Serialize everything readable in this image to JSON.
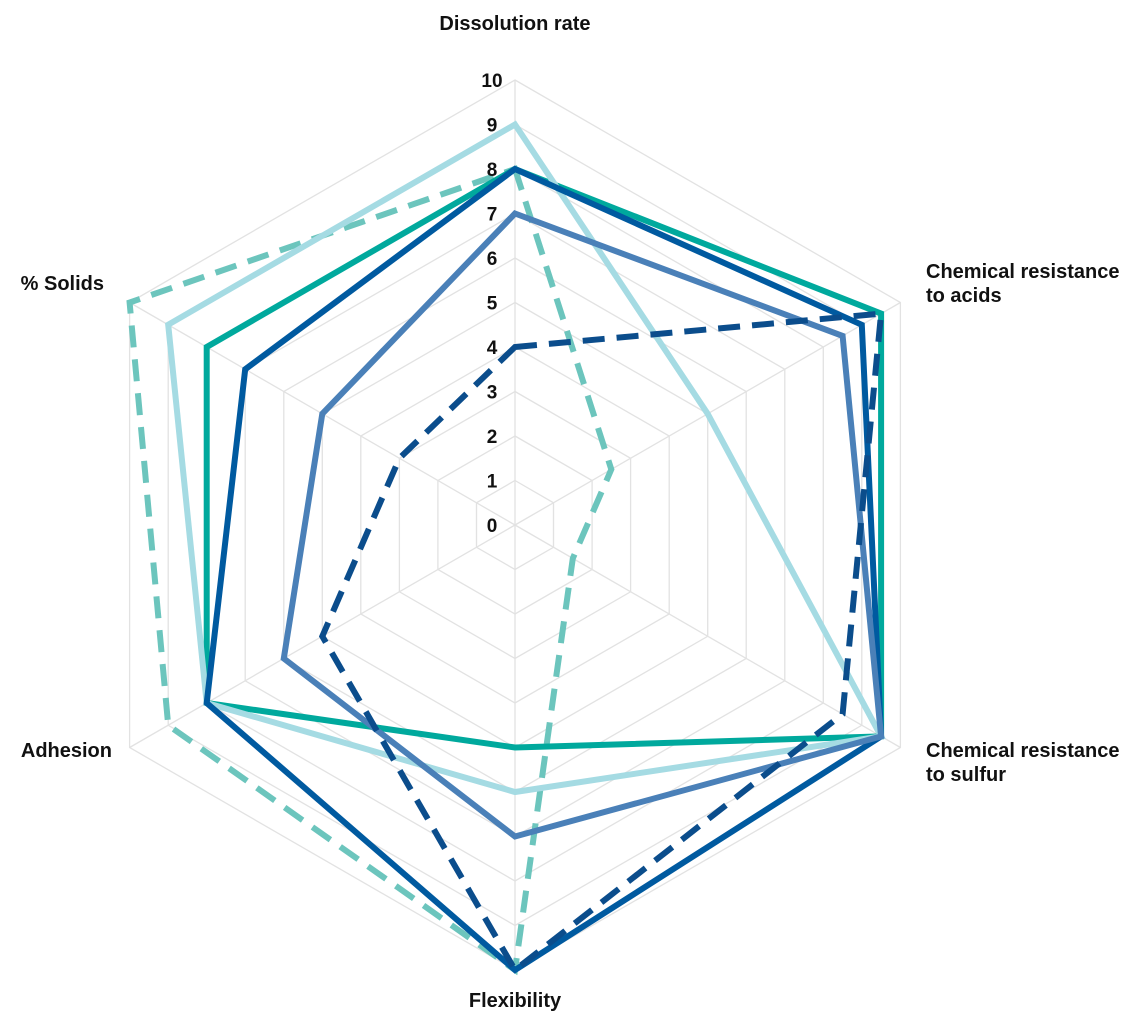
{
  "chart_data": {
    "type": "radar",
    "axes": [
      {
        "label_lines": [
          "Dissolution rate"
        ]
      },
      {
        "label_lines": [
          "Chemical resistance",
          "to acids"
        ]
      },
      {
        "label_lines": [
          "Chemical resistance",
          "to sulfur"
        ]
      },
      {
        "label_lines": [
          "Flexibility"
        ]
      },
      {
        "label_lines": [
          "Adhesion"
        ]
      },
      {
        "label_lines": [
          "% Solids"
        ]
      }
    ],
    "rlim": [
      0,
      10
    ],
    "ticks": [
      "0",
      "1",
      "2",
      "3",
      "4",
      "5",
      "6",
      "7",
      "8",
      "9",
      "10"
    ],
    "grid": true,
    "legend": "none",
    "series": [
      {
        "color": "#6cc5bd",
        "dashed": true,
        "values": [
          8,
          2.5,
          1.5,
          10,
          9,
          10
        ]
      },
      {
        "color": "#00a99d",
        "dashed": false,
        "values": [
          8,
          9.5,
          9.5,
          5,
          8,
          8
        ]
      },
      {
        "color": "#a5dbe3",
        "dashed": false,
        "values": [
          9,
          5,
          9.5,
          6,
          8,
          9
        ]
      },
      {
        "color": "#005aa0",
        "dashed": false,
        "values": [
          8,
          9,
          9.5,
          10,
          8,
          7
        ]
      },
      {
        "color": "#4a80b8",
        "dashed": false,
        "values": [
          7,
          8.5,
          9.5,
          7,
          6,
          5
        ]
      },
      {
        "color": "#0b4d8c",
        "dashed": true,
        "values": [
          4,
          9.5,
          8.5,
          10,
          5,
          3
        ]
      }
    ]
  }
}
